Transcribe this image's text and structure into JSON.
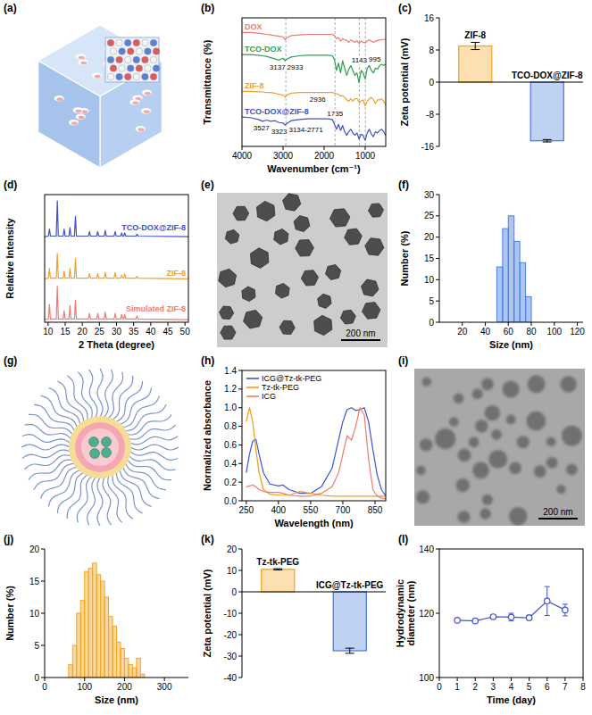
{
  "chart_data": [
    {
      "type": "crystal",
      "panel": "(a)"
    },
    {
      "type": "line",
      "panel": "(b)",
      "x_label": "Wavenumber (cm⁻¹)",
      "y_label": "Transmittance (%)",
      "x": [
        4000,
        3800,
        3600,
        3500,
        3400,
        3300,
        3200,
        3100,
        3000,
        2950,
        2900,
        2800,
        2600,
        2400,
        2200,
        2000,
        1900,
        1800,
        1750,
        1700,
        1650,
        1600,
        1550,
        1500,
        1450,
        1400,
        1350,
        1300,
        1250,
        1200,
        1150,
        1100,
        1050,
        1000,
        950,
        900,
        850,
        800,
        750,
        700,
        650,
        600,
        550,
        500
      ],
      "series": [
        {
          "name": "DOX",
          "color": "#ef7b72",
          "values": [
            93,
            93,
            92.5,
            92,
            91.5,
            91,
            90.5,
            90,
            89.5,
            87,
            89,
            90.5,
            91,
            91.5,
            91.5,
            91.5,
            91.5,
            91.5,
            90.5,
            88,
            89,
            86,
            88,
            87,
            86.5,
            85,
            87,
            86,
            85,
            86.5,
            84,
            86,
            85,
            84.5,
            86,
            87,
            86,
            85,
            86,
            86.5,
            87,
            87,
            87.5,
            87.5
          ]
        },
        {
          "name": "TCO-DOX",
          "color": "#2e9e54",
          "values": [
            75,
            75,
            74.5,
            74,
            73.5,
            72.5,
            71.5,
            70.5,
            72,
            70,
            71.5,
            73,
            74,
            74.5,
            74.5,
            74.5,
            74.5,
            74,
            71,
            62,
            68,
            60,
            70,
            64,
            58,
            63,
            66,
            62,
            58,
            60,
            52,
            62,
            60,
            55,
            64,
            66,
            62,
            60,
            64,
            63,
            66,
            67,
            66,
            67
          ]
        },
        {
          "name": "ZIF-8",
          "color": "#f0a030",
          "values": [
            45,
            45,
            44.5,
            44.5,
            44,
            44,
            43.5,
            42.5,
            42,
            40,
            42,
            43.5,
            44,
            44,
            44,
            44,
            44,
            44,
            43.5,
            43,
            42.5,
            41,
            41.5,
            40,
            38,
            37,
            39,
            37,
            39,
            39,
            36,
            37,
            38,
            33,
            37,
            39,
            40,
            38,
            35,
            38,
            38,
            39,
            37,
            34
          ]
        },
        {
          "name": "TCO-DOX@ZIF-8",
          "color": "#3f51c9",
          "values": [
            24,
            23.5,
            22,
            20.5,
            21.5,
            20.5,
            21,
            19.5,
            19,
            17.5,
            19,
            21,
            22,
            22.5,
            22.5,
            22.5,
            22.5,
            22,
            18,
            14,
            18,
            13,
            17,
            12,
            9,
            12,
            14,
            11,
            9,
            11,
            6,
            10,
            9,
            5,
            11,
            14,
            10,
            8,
            12,
            11,
            13,
            14,
            12,
            9
          ]
        }
      ],
      "xlim": [
        4000,
        500
      ],
      "xticks": [
        4000,
        3000,
        2000,
        1000
      ],
      "ylim": [
        0,
        105
      ],
      "tick_labels": "x",
      "vlines": [
        2933,
        1735,
        1143,
        995
      ],
      "annotations": [
        {
          "label": "3137",
          "x": 3137,
          "series": 1,
          "side": "below"
        },
        {
          "label": "2933",
          "x": 2933,
          "series": 1,
          "side": "below"
        },
        {
          "label": "1143",
          "x": 1143,
          "series": 1,
          "side": "above"
        },
        {
          "label": "995",
          "x": 995,
          "series": 1,
          "side": "above"
        },
        {
          "label": "2936",
          "x": 2936,
          "series": 2,
          "side": "below"
        },
        {
          "label": "3527",
          "x": 3527,
          "series": 3,
          "side": "below"
        },
        {
          "label": "3323",
          "x": 3323,
          "series": 3,
          "side": "below"
        },
        {
          "label": "3134-2771",
          "x": 2950,
          "series": 3,
          "side": "below"
        },
        {
          "label": "1735",
          "x": 1735,
          "series": 3,
          "side": "above"
        }
      ]
    },
    {
      "type": "bar",
      "panel": "(c)",
      "y_label": "Zeta potential (mV)",
      "categories": [
        "ZIF-8",
        "TCO-DOX@ZIF-8"
      ],
      "values": [
        9.0,
        -14.6
      ],
      "errors": [
        0.9,
        0.3
      ],
      "colors": [
        "#f5a623",
        "#4a7fe0"
      ],
      "ylim": [
        -16,
        16
      ],
      "yticks": [
        -16,
        -8,
        0,
        8,
        16
      ],
      "tick_labels": "y"
    },
    {
      "type": "line",
      "panel": "(d)",
      "x_label": "2 Theta (degree)",
      "y_label": "Relative Intensity",
      "x": [
        9,
        10.1,
        10.4,
        10.7,
        12.4,
        12.7,
        13.0,
        14.4,
        14.7,
        15.0,
        16.1,
        16.4,
        16.7,
        17.7,
        18.0,
        18.3,
        21.8,
        22.1,
        22.4,
        24.2,
        24.5,
        24.8,
        26.4,
        26.7,
        27.0,
        29.3,
        29.6,
        29.9,
        31.2,
        31.5,
        31.8,
        32.1,
        32.4,
        32.7,
        35.7,
        36.0,
        36.3,
        51
      ],
      "series": [
        {
          "name": "TCO-DOX@ZIF-8",
          "color": "#3f51c9",
          "values": [
            67,
            67.5,
            73,
            67.5,
            67.5,
            95,
            67.5,
            67.5,
            73,
            67.5,
            67.5,
            74,
            67.5,
            67.5,
            83,
            67.5,
            67.5,
            71,
            67.5,
            67.5,
            71,
            67.5,
            67.5,
            72,
            67.5,
            67.5,
            71,
            67.5,
            67.5,
            70,
            67.5,
            67.5,
            70,
            67.5,
            67.5,
            69,
            67.5,
            67
          ]
        },
        {
          "name": "ZIF-8",
          "color": "#f0a030",
          "values": [
            34,
            34.5,
            42,
            34.5,
            34.5,
            54,
            34.5,
            34.5,
            40,
            34.5,
            34.5,
            42,
            34.5,
            34.5,
            50,
            34.5,
            34.5,
            38,
            34.5,
            34.5,
            38,
            34.5,
            34.5,
            39,
            34.5,
            34.5,
            39,
            34.5,
            34.5,
            37,
            34.5,
            34.5,
            38,
            34.5,
            34.5,
            36,
            34.5,
            34
          ]
        },
        {
          "name": "Simulated ZIF-8",
          "color": "#ef7b72",
          "values": [
            2,
            2.5,
            14,
            2.5,
            2.5,
            28,
            2.5,
            2.5,
            9,
            2.5,
            2.5,
            13,
            2.5,
            2.5,
            17,
            2.5,
            2.5,
            7,
            2.5,
            2.5,
            7,
            2.5,
            2.5,
            8,
            2.5,
            2.5,
            7,
            2.5,
            2.5,
            6,
            2.5,
            2.5,
            6,
            2.5,
            2.5,
            5,
            2.5,
            2
          ]
        }
      ],
      "xlim": [
        9,
        51
      ],
      "xticks": [
        10,
        15,
        20,
        25,
        30,
        35,
        40,
        45,
        50
      ],
      "ylim": [
        0,
        100
      ],
      "tick_labels": "x"
    },
    {
      "type": "micrograph",
      "panel": "(e)",
      "scale_bar": "200 nm"
    },
    {
      "type": "histogram",
      "panel": "(f)",
      "x_label": "Size (nm)",
      "y_label": "Number (%)",
      "bins": [
        50,
        55,
        60,
        65,
        70,
        75,
        80
      ],
      "values": [
        13,
        22,
        25,
        19,
        14,
        6
      ],
      "color": "#4a7fe0",
      "xlim": [
        0,
        125
      ],
      "xticks": [
        20,
        40,
        60,
        80,
        100,
        120
      ],
      "ylim": [
        0,
        30
      ],
      "yticks": [
        0,
        5,
        10,
        15,
        20,
        25,
        30
      ]
    },
    {
      "type": "micelle",
      "panel": "(g)"
    },
    {
      "type": "line",
      "panel": "(h)",
      "x_label": "Wavelength (nm)",
      "y_label": "Normalized absorbance",
      "x": [
        250,
        265,
        280,
        295,
        310,
        330,
        360,
        400,
        420,
        450,
        500,
        550,
        600,
        650,
        680,
        700,
        720,
        740,
        760,
        780,
        800,
        820,
        840,
        860,
        880,
        900
      ],
      "series": [
        {
          "name": "ICG@Tz-tk-PEG",
          "color": "#3f51d9",
          "values": [
            0.3,
            0.5,
            0.64,
            0.66,
            0.5,
            0.3,
            0.18,
            0.16,
            0.17,
            0.12,
            0.08,
            0.08,
            0.15,
            0.35,
            0.65,
            0.85,
            0.98,
            1.0,
            0.97,
            0.98,
            1.0,
            0.85,
            0.55,
            0.28,
            0.12,
            0.05
          ]
        },
        {
          "name": "Tz-tk-PEG",
          "color": "#f39c12",
          "values": [
            0.85,
            1.0,
            0.85,
            0.55,
            0.3,
            0.12,
            0.07,
            0.06,
            0.06,
            0.06,
            0.1,
            0.08,
            0.06,
            0.05,
            0.05,
            0.05,
            0.05,
            0.05,
            0.05,
            0.05,
            0.05,
            0.05,
            0.05,
            0.05,
            0.05,
            0.05
          ]
        },
        {
          "name": "ICG",
          "color": "#ef7b72",
          "values": [
            0.15,
            0.16,
            0.17,
            0.15,
            0.12,
            0.1,
            0.09,
            0.09,
            0.08,
            0.06,
            0.05,
            0.05,
            0.08,
            0.15,
            0.3,
            0.5,
            0.7,
            0.65,
            0.8,
            1.0,
            0.92,
            0.45,
            0.12,
            0.05,
            0.03,
            0.02
          ]
        }
      ],
      "xlim": [
        230,
        900
      ],
      "xticks": [
        250,
        400,
        550,
        700,
        850
      ],
      "ylim": [
        0,
        1.4
      ],
      "yticks": [
        {
          "value": 0,
          "label": "0.0"
        },
        0.2,
        0.4,
        0.6,
        0.8,
        {
          "value": 1,
          "label": "1.0"
        },
        1.2,
        1.4
      ],
      "legend": "upper left"
    },
    {
      "type": "micrograph",
      "panel": "(i)",
      "scale_bar": "200 nm"
    },
    {
      "type": "histogram",
      "panel": "(j)",
      "x_label": "Size (nm)",
      "y_label": "Number (%)",
      "bins": [
        60,
        70,
        80,
        90,
        100,
        110,
        120,
        130,
        140,
        150,
        160,
        170,
        180,
        190,
        200,
        210,
        220,
        230,
        240,
        250
      ],
      "values": [
        2,
        5,
        10,
        12,
        16.5,
        17,
        17.8,
        16,
        15,
        12.5,
        9.5,
        8,
        5.5,
        4.5,
        3,
        2,
        1.5,
        3,
        0.5
      ],
      "color": "#f5a623",
      "xlim": [
        0,
        360
      ],
      "xticks": [
        0,
        100,
        200,
        300
      ],
      "ylim": [
        0,
        20
      ],
      "yticks": [
        0,
        5,
        10,
        15,
        20
      ]
    },
    {
      "type": "bar",
      "panel": "(k)",
      "y_label": "Zeta potential (mV)",
      "categories": [
        "Tz-tk-PEG",
        "ICG@Tz-tk-PEG"
      ],
      "values": [
        10.5,
        -27.5
      ],
      "errors": [
        0.3,
        1.2
      ],
      "colors": [
        "#f5a623",
        "#4a7fe0"
      ],
      "ylim": [
        -40,
        20
      ],
      "yticks": [
        -40,
        -30,
        -20,
        -10,
        0,
        10,
        20
      ],
      "tick_labels": "y"
    },
    {
      "type": "line",
      "panel": "(l)",
      "x_label": "Time (day)",
      "y_label": "Hydrodynamic diameter (nm)",
      "x": [
        1,
        2,
        3,
        4,
        5,
        6,
        7
      ],
      "values": [
        117.8,
        117.6,
        118.9,
        118.8,
        118.6,
        123.8,
        121.0
      ],
      "errors": [
        0.5,
        0.3,
        0.6,
        1.2,
        0.8,
        4.5,
        1.8
      ],
      "color": "#3f51d9",
      "marker": "circle",
      "xlim": [
        0,
        8
      ],
      "xticks": [
        0,
        1,
        2,
        3,
        4,
        5,
        6,
        7,
        8
      ],
      "ylim": [
        100,
        140
      ],
      "yticks": [
        100,
        120,
        140
      ]
    }
  ]
}
